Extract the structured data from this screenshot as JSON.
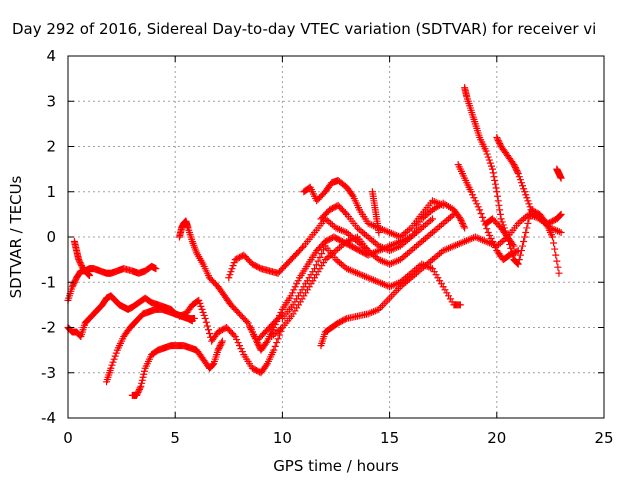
{
  "chart_data": {
    "type": "scatter",
    "title": "Day 292 of 2016, Sidereal Day-to-day VTEC variation (SDTVAR) for receiver vi",
    "xlabel": "GPS time / hours",
    "ylabel": "SDTVAR / TECUs",
    "xlim": [
      0,
      25
    ],
    "ylim": [
      -4,
      4
    ],
    "xticks": [
      "0",
      "5",
      "10",
      "15",
      "20",
      "25"
    ],
    "yticks": [
      "-4",
      "-3",
      "-2",
      "-1",
      "0",
      "1",
      "2",
      "3",
      "4"
    ],
    "grid": true,
    "marker": "plus",
    "series_color": "#ff0000",
    "series": [
      {
        "x": [
          0.0,
          0.2,
          0.4,
          0.6,
          0.8,
          1.0,
          1.2,
          1.5,
          1.8,
          2.0,
          2.3,
          2.6,
          3.0,
          3.3,
          3.6,
          3.9,
          4.1
        ],
        "y": [
          -1.4,
          -1.1,
          -0.9,
          -0.75,
          -0.75,
          -0.7,
          -0.7,
          -0.75,
          -0.8,
          -0.8,
          -0.75,
          -0.7,
          -0.75,
          -0.8,
          -0.75,
          -0.65,
          -0.7
        ]
      },
      {
        "x": [
          0.3,
          0.4,
          0.5,
          0.7,
          0.9,
          1.0
        ],
        "y": [
          -0.1,
          -0.3,
          -0.5,
          -0.7,
          -0.8,
          -0.85
        ]
      },
      {
        "x": [
          0.0,
          0.2,
          0.4,
          0.6,
          0.8,
          1.0,
          1.2,
          1.4,
          1.6,
          1.8,
          2.0,
          2.2,
          2.4,
          2.6,
          2.8,
          3.0,
          3.3,
          3.6,
          3.9,
          4.2,
          4.5,
          4.8,
          5.0,
          5.3,
          5.6,
          5.8
        ],
        "y": [
          -2.0,
          -2.1,
          -2.1,
          -2.2,
          -1.9,
          -1.8,
          -1.7,
          -1.6,
          -1.5,
          -1.35,
          -1.3,
          -1.4,
          -1.5,
          -1.55,
          -1.6,
          -1.55,
          -1.45,
          -1.35,
          -1.45,
          -1.5,
          -1.55,
          -1.6,
          -1.7,
          -1.75,
          -1.8,
          -1.85
        ]
      },
      {
        "x": [
          1.8,
          2.0,
          2.3,
          2.6,
          2.9,
          3.2,
          3.5,
          3.8,
          4.1,
          4.4,
          4.7,
          5.0,
          5.3,
          5.6,
          5.9
        ],
        "y": [
          -3.2,
          -2.9,
          -2.5,
          -2.2,
          -2.0,
          -1.85,
          -1.7,
          -1.65,
          -1.6,
          -1.6,
          -1.65,
          -1.7,
          -1.75,
          -1.8,
          -1.8
        ]
      },
      {
        "x": [
          3.0,
          3.2,
          3.4,
          3.6,
          3.9,
          4.2,
          4.5,
          4.8,
          5.1,
          5.4,
          5.7,
          6.0,
          6.3,
          6.6,
          6.8,
          7.0,
          7.2
        ],
        "y": [
          -3.5,
          -3.5,
          -3.3,
          -2.9,
          -2.6,
          -2.5,
          -2.45,
          -2.4,
          -2.4,
          -2.4,
          -2.45,
          -2.5,
          -2.7,
          -2.9,
          -2.8,
          -2.5,
          -2.3
        ]
      },
      {
        "x": [
          5.2,
          5.3,
          5.4,
          5.5,
          5.6,
          5.8,
          6.0,
          6.3,
          6.6,
          7.0,
          7.3,
          7.6,
          8.0,
          8.4,
          8.8,
          9.2,
          9.6,
          10.0
        ],
        "y": [
          0.0,
          0.2,
          0.3,
          0.35,
          0.2,
          -0.1,
          -0.35,
          -0.6,
          -0.9,
          -1.1,
          -1.3,
          -1.5,
          -1.7,
          -1.9,
          -2.3,
          -2.1,
          -1.9,
          -1.7
        ]
      },
      {
        "x": [
          5.2,
          5.5,
          5.8,
          6.1,
          6.4,
          6.7,
          7.0,
          7.4,
          7.8,
          8.2,
          8.6,
          9.0,
          9.3,
          9.6,
          10.0
        ],
        "y": [
          -1.75,
          -1.7,
          -1.5,
          -1.4,
          -1.8,
          -2.3,
          -2.1,
          -2.0,
          -2.2,
          -2.6,
          -2.9,
          -3.0,
          -2.8,
          -2.5,
          -2.0
        ]
      },
      {
        "x": [
          7.5,
          7.8,
          8.2,
          8.6,
          9.0,
          9.4,
          9.8,
          10.2,
          10.6,
          11.0,
          11.5,
          12.0,
          12.5,
          13.0,
          13.5,
          14.0
        ],
        "y": [
          -0.9,
          -0.5,
          -0.4,
          -0.6,
          -0.7,
          -0.75,
          -0.8,
          -0.6,
          -0.4,
          -0.2,
          0.1,
          0.4,
          0.2,
          0.1,
          -0.1,
          -0.3
        ]
      },
      {
        "x": [
          8.5,
          8.8,
          9.0,
          9.3,
          9.6,
          10.0,
          10.4,
          10.8,
          11.2,
          11.6,
          12.0,
          12.4,
          12.8,
          13.2,
          13.6,
          14.0,
          14.5,
          15.0,
          15.5,
          16.0,
          16.5,
          17.0
        ],
        "y": [
          -2.0,
          -2.3,
          -2.5,
          -2.3,
          -2.0,
          -1.6,
          -1.3,
          -0.9,
          -0.6,
          -0.3,
          -0.1,
          0.0,
          -0.1,
          -0.2,
          -0.3,
          -0.4,
          -0.3,
          -0.2,
          -0.1,
          0.0,
          0.2,
          0.4
        ]
      },
      {
        "x": [
          9.5,
          10.0,
          10.5,
          11.0,
          11.5,
          12.0,
          12.5,
          13.0,
          13.5,
          14.0,
          14.5,
          15.0,
          15.5,
          16.0,
          16.5,
          17.0,
          17.5,
          18.0
        ],
        "y": [
          -2.2,
          -2.0,
          -1.7,
          -1.3,
          -0.9,
          -0.5,
          -0.3,
          -0.1,
          0.0,
          -0.3,
          -0.5,
          -0.6,
          -0.5,
          -0.3,
          -0.1,
          0.1,
          0.3,
          0.5
        ]
      },
      {
        "x": [
          10.0,
          10.5,
          11.0,
          11.5,
          12.0,
          12.5,
          13.0,
          13.5,
          14.0,
          14.5,
          15.0,
          15.5,
          16.0,
          16.5,
          17.0,
          17.5,
          18.0,
          18.3
        ],
        "y": [
          -1.8,
          -1.5,
          -1.1,
          -0.7,
          -0.2,
          -0.5,
          -0.7,
          -0.8,
          -0.9,
          -1.0,
          -1.1,
          -1.0,
          -0.8,
          -0.6,
          -0.7,
          -1.1,
          -1.5,
          -1.5
        ]
      },
      {
        "x": [
          11.0,
          11.3,
          11.6,
          12.0,
          12.3,
          12.6,
          13.0,
          13.3,
          13.6,
          14.0,
          14.5,
          15.0,
          15.5,
          16.0,
          16.5,
          17.0,
          17.5
        ],
        "y": [
          1.0,
          1.1,
          0.8,
          1.0,
          1.2,
          1.25,
          1.1,
          0.9,
          0.6,
          0.3,
          0.2,
          0.1,
          0.0,
          0.2,
          0.5,
          0.8,
          0.7
        ]
      },
      {
        "x": [
          11.8,
          12.2,
          12.6,
          13.0,
          13.5,
          14.0,
          14.5,
          15.0,
          15.5,
          16.0,
          16.5,
          17.0,
          17.5,
          18.0,
          18.3,
          18.5
        ],
        "y": [
          0.4,
          0.6,
          0.7,
          0.5,
          0.2,
          0.0,
          -0.2,
          -0.3,
          -0.2,
          0.0,
          0.4,
          0.6,
          0.75,
          0.6,
          0.4,
          0.2
        ]
      },
      {
        "x": [
          14.2,
          14.3,
          14.4,
          14.5
        ],
        "y": [
          1.0,
          0.7,
          0.4,
          0.1
        ]
      },
      {
        "x": [
          11.8,
          12.0,
          12.3,
          12.6,
          13.0,
          13.5,
          14.0,
          14.5,
          15.0,
          15.5,
          16.0,
          16.5,
          17.0,
          17.5,
          18.0,
          18.5,
          19.0,
          19.5,
          20.0,
          20.5,
          21.0,
          21.5,
          22.0,
          22.5,
          23.0
        ],
        "y": [
          -2.4,
          -2.1,
          -2.0,
          -1.9,
          -1.8,
          -1.75,
          -1.7,
          -1.6,
          -1.35,
          -1.1,
          -0.9,
          -0.7,
          -0.5,
          -0.3,
          -0.2,
          -0.1,
          0.0,
          -0.1,
          -0.2,
          0.0,
          0.3,
          0.5,
          0.4,
          0.2,
          0.1
        ]
      },
      {
        "x": [
          18.5,
          18.6,
          18.8,
          19.0,
          19.2,
          19.5,
          19.8,
          20.0,
          20.2,
          20.5,
          20.8
        ],
        "y": [
          3.3,
          3.1,
          2.8,
          2.5,
          2.2,
          1.9,
          1.5,
          1.0,
          0.4,
          0.0,
          -0.2
        ]
      },
      {
        "x": [
          18.2,
          18.5,
          18.8,
          19.2,
          19.6,
          20.0,
          20.3,
          20.6,
          21.0
        ],
        "y": [
          1.6,
          1.3,
          1.0,
          0.6,
          0.1,
          -0.3,
          -0.5,
          -0.4,
          -0.3
        ]
      },
      {
        "x": [
          20.0,
          20.2,
          20.5,
          20.8,
          21.0,
          21.3,
          21.6,
          22.0,
          22.3,
          22.6,
          22.9
        ],
        "y": [
          2.2,
          2.0,
          1.8,
          1.6,
          1.4,
          1.0,
          0.6,
          0.5,
          0.3,
          0.0,
          -0.8
        ]
      },
      {
        "x": [
          19.5,
          19.8,
          20.2,
          20.5,
          20.8,
          21.0,
          21.3,
          21.6,
          22.0,
          22.4,
          22.8,
          23.0
        ],
        "y": [
          0.3,
          0.4,
          0.2,
          0.0,
          -0.5,
          -0.6,
          0.0,
          0.6,
          0.4,
          0.3,
          0.4,
          0.5
        ]
      },
      {
        "x": [
          22.8,
          22.9,
          23.0
        ],
        "y": [
          1.5,
          1.4,
          1.3
        ]
      }
    ]
  }
}
